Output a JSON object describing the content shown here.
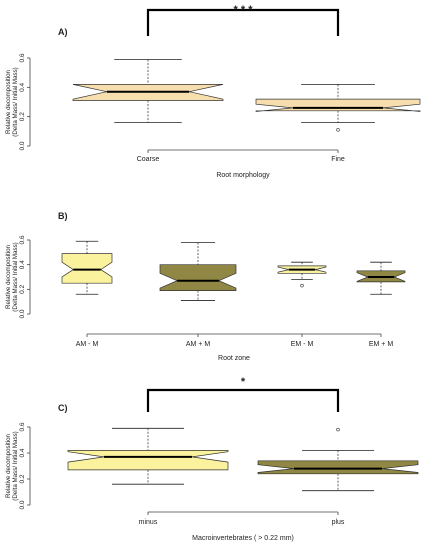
{
  "chart_data": [
    {
      "type": "boxplot",
      "panel_label": "A)",
      "xlabel": "Root morphology",
      "ylabel": "Relative decomposition\n(Delta Mass/ Initial Mass)",
      "ylim": [
        0.0,
        0.6
      ],
      "yticks": [
        "0.0",
        "0.2",
        "0.4",
        "0.6"
      ],
      "categories": [
        "Coarse",
        "Fine"
      ],
      "boxes": [
        {
          "whisker_low": 0.16,
          "q1": 0.31,
          "median": 0.37,
          "q3": 0.42,
          "whisker_high": 0.59,
          "notch": 0.05,
          "outliers": [],
          "fill": "#f7deae"
        },
        {
          "whisker_low": 0.16,
          "q1": 0.24,
          "median": 0.26,
          "q3": 0.32,
          "whisker_high": 0.42,
          "notch": 0.025,
          "outliers": [
            0.11
          ],
          "fill": "#f7deae"
        }
      ],
      "significance": "* * *",
      "significance_pair": [
        0,
        1
      ]
    },
    {
      "type": "boxplot",
      "panel_label": "B)",
      "xlabel": "Root zone",
      "ylabel": "Relative decomposition\n(Delta Mass/ Initial Mass)",
      "ylim": [
        0.0,
        0.6
      ],
      "yticks": [
        "0.0",
        "0.2",
        "0.4",
        "0.6"
      ],
      "categories": [
        "AM - M",
        "AM + M",
        "EM - M",
        "EM + M"
      ],
      "boxes": [
        {
          "whisker_low": 0.16,
          "q1": 0.25,
          "median": 0.36,
          "q3": 0.49,
          "whisker_high": 0.59,
          "notch": 0.06,
          "outliers": [],
          "fill": "#fbf29d"
        },
        {
          "whisker_low": 0.11,
          "q1": 0.19,
          "median": 0.27,
          "q3": 0.4,
          "whisker_high": 0.58,
          "notch": 0.06,
          "outliers": [],
          "fill": "#8f8743"
        },
        {
          "whisker_low": 0.28,
          "q1": 0.33,
          "median": 0.36,
          "q3": 0.39,
          "whisker_high": 0.42,
          "notch": 0.02,
          "outliers": [
            0.23
          ],
          "fill": "#fbf29d"
        },
        {
          "whisker_low": 0.16,
          "q1": 0.26,
          "median": 0.3,
          "q3": 0.35,
          "whisker_high": 0.42,
          "notch": 0.035,
          "outliers": [],
          "fill": "#8f8743"
        }
      ]
    },
    {
      "type": "boxplot",
      "panel_label": "C)",
      "xlabel": "Macroinvertebrates ( > 0.22 mm)",
      "ylabel": "Relative decomposition\n(Delta Mass/ Initial Mass)",
      "ylim": [
        0.0,
        0.6
      ],
      "yticks": [
        "0.0",
        "0.2",
        "0.4",
        "0.6"
      ],
      "categories": [
        "minus",
        "plus"
      ],
      "boxes": [
        {
          "whisker_low": 0.16,
          "q1": 0.27,
          "median": 0.37,
          "q3": 0.42,
          "whisker_high": 0.59,
          "notch": 0.04,
          "outliers": [],
          "fill": "#fbf29d"
        },
        {
          "whisker_low": 0.11,
          "q1": 0.24,
          "median": 0.28,
          "q3": 0.34,
          "whisker_high": 0.42,
          "notch": 0.03,
          "outliers": [
            0.58
          ],
          "fill": "#8f8743"
        }
      ],
      "significance": "*",
      "significance_pair": [
        0,
        1
      ]
    }
  ]
}
